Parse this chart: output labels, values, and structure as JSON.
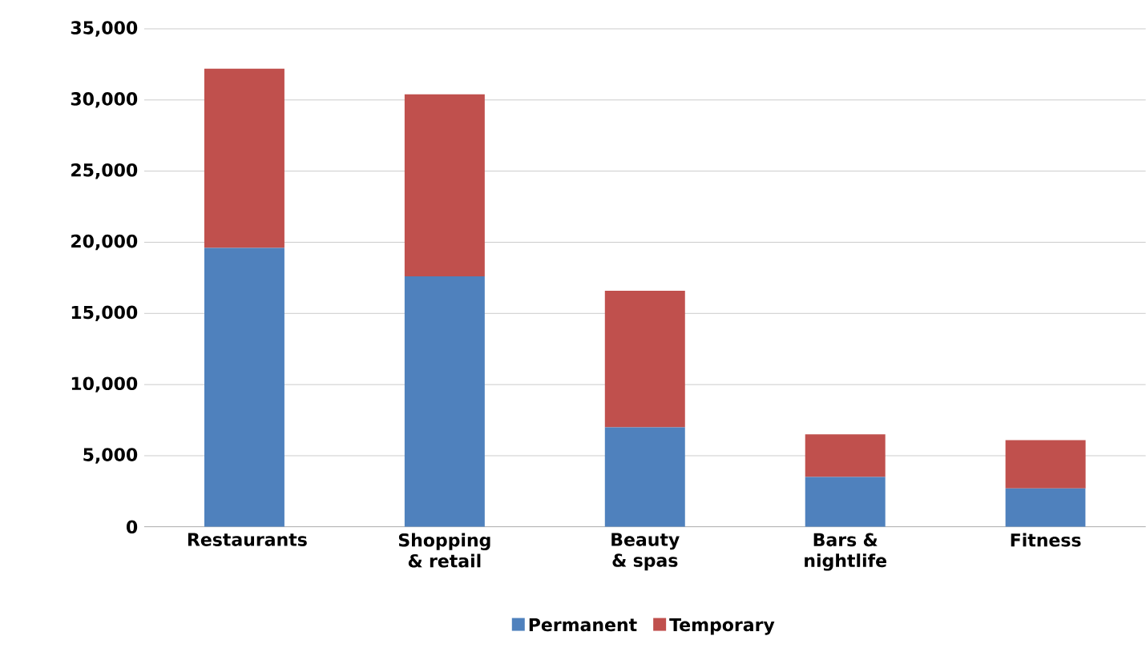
{
  "chart_data": {
    "type": "bar",
    "stacked": true,
    "categories": [
      "Restaurants",
      "Shopping & retail",
      "Beauty & spas",
      "Bars & nightlife",
      "Fitness"
    ],
    "series": [
      {
        "name": "Permanent",
        "color": "#4f81bd",
        "values": [
          19600,
          17600,
          7000,
          3500,
          2700
        ]
      },
      {
        "name": "Temporary",
        "color": "#c0504d",
        "values": [
          12600,
          12800,
          9600,
          3000,
          3400
        ]
      }
    ],
    "ylim": [
      0,
      35000
    ],
    "yticks": [
      {
        "value": 0,
        "label": "0"
      },
      {
        "value": 5000,
        "label": "5,000"
      },
      {
        "value": 10000,
        "label": "10,000"
      },
      {
        "value": 15000,
        "label": "15,000"
      },
      {
        "value": 20000,
        "label": "20,000"
      },
      {
        "value": 25000,
        "label": "25,000"
      },
      {
        "value": 30000,
        "label": "30,000"
      },
      {
        "value": 35000,
        "label": "35,000"
      }
    ],
    "grid": "y",
    "legend": "bottom"
  }
}
